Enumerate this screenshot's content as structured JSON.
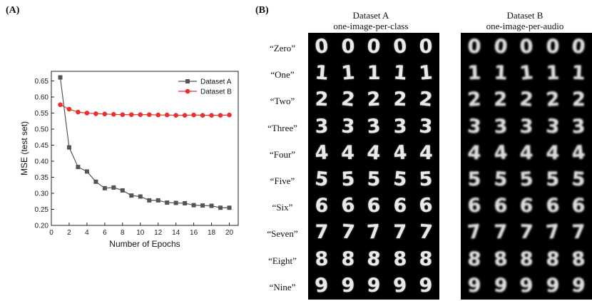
{
  "panel_labels": {
    "a": "(A)",
    "b": "(B)"
  },
  "chart_data": {
    "type": "line",
    "title": "",
    "xlabel": "Number of Epochs",
    "ylabel": "MSE (test set)",
    "xlim": [
      0,
      21
    ],
    "ylim": [
      0.2,
      0.68
    ],
    "xticks": [
      0,
      2,
      4,
      6,
      8,
      10,
      12,
      14,
      16,
      18,
      20
    ],
    "yticks": [
      0.2,
      0.25,
      0.3,
      0.35,
      0.4,
      0.45,
      0.5,
      0.55,
      0.6,
      0.65
    ],
    "ytick_labels": [
      "0.20",
      "0.25",
      "0.30",
      "0.35",
      "0.40",
      "0.45",
      "0.50",
      "0.55",
      "0.60",
      "0.65"
    ],
    "legend_position": "top-right",
    "grid": false,
    "x": [
      1,
      2,
      3,
      4,
      5,
      6,
      7,
      8,
      9,
      10,
      11,
      12,
      13,
      14,
      15,
      16,
      17,
      18,
      19,
      20
    ],
    "series": [
      {
        "name": "Dataset A",
        "color": "#555555",
        "marker": "square",
        "values": [
          0.661,
          0.443,
          0.382,
          0.368,
          0.336,
          0.316,
          0.318,
          0.309,
          0.293,
          0.29,
          0.278,
          0.278,
          0.271,
          0.27,
          0.269,
          0.263,
          0.262,
          0.261,
          0.255,
          0.255
        ]
      },
      {
        "name": "Dataset B",
        "color": "#e8302f",
        "marker": "circle",
        "values": [
          0.576,
          0.562,
          0.553,
          0.55,
          0.548,
          0.547,
          0.546,
          0.545,
          0.545,
          0.545,
          0.545,
          0.544,
          0.544,
          0.543,
          0.543,
          0.544,
          0.543,
          0.543,
          0.543,
          0.544
        ]
      }
    ]
  },
  "datasets": [
    {
      "title_line1": "Dataset A",
      "title_line2": "one-image-per-class"
    },
    {
      "title_line1": "Dataset B",
      "title_line2": "one-image-per-audio"
    }
  ],
  "rows": [
    {
      "label": "“Zero”",
      "digit": "0"
    },
    {
      "label": "“One”",
      "digit": "1"
    },
    {
      "label": "“Two”",
      "digit": "2"
    },
    {
      "label": "“Three”",
      "digit": "3"
    },
    {
      "label": "“Four”",
      "digit": "4"
    },
    {
      "label": "“Five”",
      "digit": "5"
    },
    {
      "label": "“Six”",
      "digit": "6"
    },
    {
      "label": "“Seven”",
      "digit": "7"
    },
    {
      "label": "“Eight”",
      "digit": "8"
    },
    {
      "label": "“Nine”",
      "digit": "9"
    }
  ]
}
